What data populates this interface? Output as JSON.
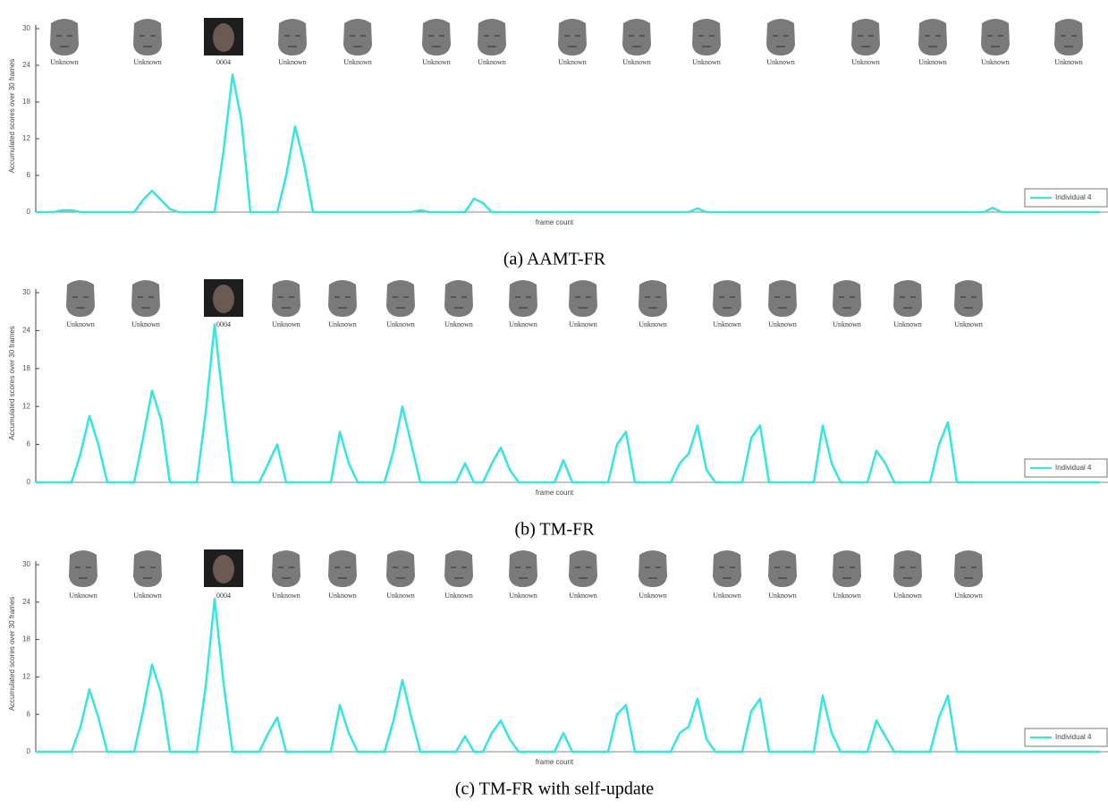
{
  "chart_data": [
    {
      "type": "line",
      "ylabel": "Accumulated scores over 30 frames",
      "xlabel": "frame count",
      "caption": "(a) AAMT-FR",
      "ylim": [
        0,
        30
      ],
      "yticks": [
        0,
        6,
        12,
        18,
        24,
        30
      ],
      "legend": "lower right",
      "image_labels": [
        "Unknown",
        "Unknown",
        "0004",
        "Unknown",
        "Unknown",
        "Unknown",
        "Unknown",
        "Unknown",
        "Unknown",
        "Unknown",
        "Unknown",
        "Unknown",
        "Unknown",
        "Unknown",
        "Unknown"
      ],
      "series": [
        {
          "name": "Individual 4",
          "color": "#33e6e6",
          "values": [
            0,
            0,
            0,
            0.3,
            0.3,
            0,
            0,
            0,
            0,
            0,
            0,
            0,
            2,
            3.5,
            2,
            0.5,
            0,
            0,
            0,
            0,
            0,
            10,
            22.5,
            15,
            0,
            0,
            0,
            0,
            6,
            14,
            8,
            0,
            0,
            0,
            0,
            0,
            0,
            0,
            0,
            0,
            0,
            0,
            0,
            0.3,
            0,
            0,
            0,
            0,
            0,
            2.2,
            1.5,
            0,
            0,
            0,
            0,
            0,
            0,
            0,
            0,
            0,
            0,
            0,
            0,
            0,
            0,
            0,
            0,
            0,
            0,
            0,
            0,
            0,
            0,
            0,
            0.6,
            0,
            0,
            0,
            0,
            0,
            0,
            0,
            0,
            0,
            0,
            0,
            0,
            0,
            0,
            0,
            0,
            0,
            0,
            0,
            0,
            0,
            0,
            0,
            0,
            0,
            0,
            0,
            0,
            0,
            0,
            0,
            0,
            0.7,
            0,
            0,
            0,
            0,
            0,
            0,
            0,
            0,
            0,
            0,
            0,
            0
          ]
        }
      ]
    },
    {
      "type": "line",
      "ylabel": "Accumulated scores over 30 frames",
      "xlabel": "frame count",
      "caption": "(b) TM-FR",
      "ylim": [
        0,
        30
      ],
      "yticks": [
        0,
        6,
        12,
        18,
        24,
        30
      ],
      "legend": "lower right",
      "image_labels": [
        "Unknown",
        "Unknown",
        "0004",
        "Unknown",
        "Unknown",
        "Unknown",
        "Unknown",
        "Unknown",
        "Unknown",
        "Unknown",
        "Unknown",
        "Unknown",
        "Unknown",
        "Unknown",
        "Unknown"
      ],
      "series": [
        {
          "name": "Individual 4",
          "color": "#33e6e6",
          "values": [
            0,
            0,
            0,
            0,
            0,
            4.5,
            10.5,
            6,
            0,
            0,
            0,
            0,
            7,
            14.5,
            10,
            0,
            0,
            0,
            0,
            11,
            25,
            12,
            0,
            0,
            0,
            0,
            3,
            6,
            0,
            0,
            0,
            0,
            0,
            0,
            8,
            3,
            0,
            0,
            0,
            0,
            5,
            12,
            6,
            0,
            0,
            0,
            0,
            0,
            3,
            0,
            0,
            3,
            5.5,
            2,
            0,
            0,
            0,
            0,
            0,
            3.5,
            0,
            0,
            0,
            0,
            0,
            6,
            8,
            0,
            0,
            0,
            0,
            0,
            3,
            4.5,
            9,
            2,
            0,
            0,
            0,
            0,
            7,
            9,
            0,
            0,
            0,
            0,
            0,
            0,
            9,
            3,
            0,
            0,
            0,
            0,
            5,
            3,
            0,
            0,
            0,
            0,
            0,
            6,
            9.5,
            0,
            0,
            0,
            0,
            0,
            0,
            0,
            0,
            0,
            0,
            0,
            0,
            0,
            0,
            0,
            0,
            0
          ]
        }
      ]
    },
    {
      "type": "line",
      "ylabel": "Accumulated scores over 30 frames",
      "xlabel": "frame count",
      "caption": "(c) TM-FR with self-update",
      "ylim": [
        0,
        30
      ],
      "yticks": [
        0,
        6,
        12,
        18,
        24,
        30
      ],
      "legend": "lower right",
      "image_labels": [
        "Unknown",
        "Unknown",
        "0004",
        "Unknown",
        "Unknown",
        "Unknown",
        "Unknown",
        "Unknown",
        "Unknown",
        "Unknown",
        "Unknown",
        "Unknown",
        "Unknown",
        "Unknown",
        "Unknown"
      ],
      "series": [
        {
          "name": "Individual 4",
          "color": "#33e6e6",
          "values": [
            0,
            0,
            0,
            0,
            0,
            4,
            10,
            5.5,
            0,
            0,
            0,
            0,
            6.5,
            14,
            9.5,
            0,
            0,
            0,
            0,
            10.5,
            24.5,
            11,
            0,
            0,
            0,
            0,
            3,
            5.5,
            0,
            0,
            0,
            0,
            0,
            0,
            7.5,
            3,
            0,
            0,
            0,
            0,
            5,
            11.5,
            5.5,
            0,
            0,
            0,
            0,
            0,
            2.5,
            0,
            0,
            3,
            5,
            2,
            0,
            0,
            0,
            0,
            0,
            3,
            0,
            0,
            0,
            0,
            0,
            6,
            7.5,
            0,
            0,
            0,
            0,
            0,
            3,
            4,
            8.5,
            2,
            0,
            0,
            0,
            0,
            6.5,
            8.5,
            0,
            0,
            0,
            0,
            0,
            0,
            9,
            3,
            0,
            0,
            0,
            0,
            5,
            2.5,
            0,
            0,
            0,
            0,
            0,
            5.5,
            9,
            0,
            0,
            0,
            0,
            0,
            0,
            0,
            0,
            0,
            0,
            0,
            0,
            0,
            0,
            0,
            0,
            0
          ]
        }
      ]
    }
  ]
}
